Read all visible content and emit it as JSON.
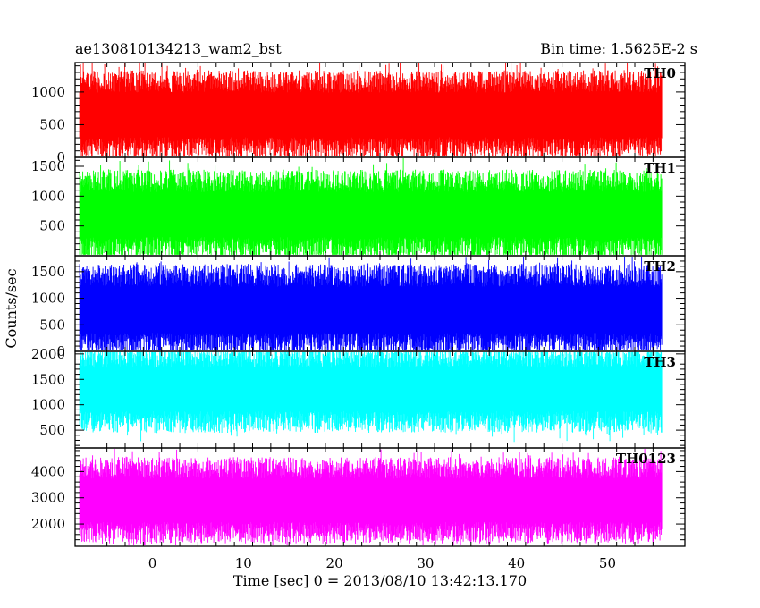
{
  "chart_data": {
    "type": "line",
    "title_left": "ae130810134213_wam2_bst",
    "title_right": "Bin time: 1.5625E-2 s",
    "xlabel": "Time [sec] 0 = 2013/08/10 13:42:13.170",
    "ylabel": "Counts/sec",
    "xlim": [
      -8.5,
      58.5
    ],
    "x_range_data": [
      -8,
      56
    ],
    "x_ticks": [
      0,
      10,
      20,
      30,
      40,
      50
    ],
    "x_tick_labels": [
      "0",
      "10",
      "20",
      "30",
      "40",
      "50"
    ],
    "panels": [
      {
        "name": "TH0",
        "color": "#ff0000",
        "ylim": [
          0,
          1450
        ],
        "y_ticks": [
          0,
          500,
          1000
        ],
        "y_tick_labels": [
          "0",
          "500",
          "1000"
        ],
        "mean": 650,
        "typical_min": 60,
        "typical_max": 1300
      },
      {
        "name": "TH1",
        "color": "#00ff00",
        "ylim": [
          0,
          1650
        ],
        "y_ticks": [
          500,
          1000,
          1500
        ],
        "y_tick_labels": [
          "500",
          "1000",
          "1500"
        ],
        "mean": 690,
        "typical_min": 80,
        "typical_max": 1450
      },
      {
        "name": "TH2",
        "color": "#0000ff",
        "ylim": [
          0,
          1800
        ],
        "y_ticks": [
          0,
          500,
          1000,
          1500
        ],
        "y_tick_labels": [
          "0",
          "500",
          "1000",
          "1500"
        ],
        "mean": 780,
        "typical_min": 80,
        "typical_max": 1650
      },
      {
        "name": "TH3",
        "color": "#00ffff",
        "ylim": [
          150,
          2050
        ],
        "y_ticks": [
          500,
          1000,
          1500,
          2000
        ],
        "y_tick_labels": [
          "500",
          "1000",
          "1500",
          "2000"
        ],
        "mean": 1300,
        "typical_min": 400,
        "typical_max": 1950
      },
      {
        "name": "TH0123",
        "color": "#ff00ff",
        "ylim": [
          1150,
          4900
        ],
        "y_ticks": [
          2000,
          3000,
          4000
        ],
        "y_tick_labels": [
          "2000",
          "3000",
          "4000"
        ],
        "mean": 2900,
        "typical_min": 1500,
        "typical_max": 4500
      }
    ]
  }
}
